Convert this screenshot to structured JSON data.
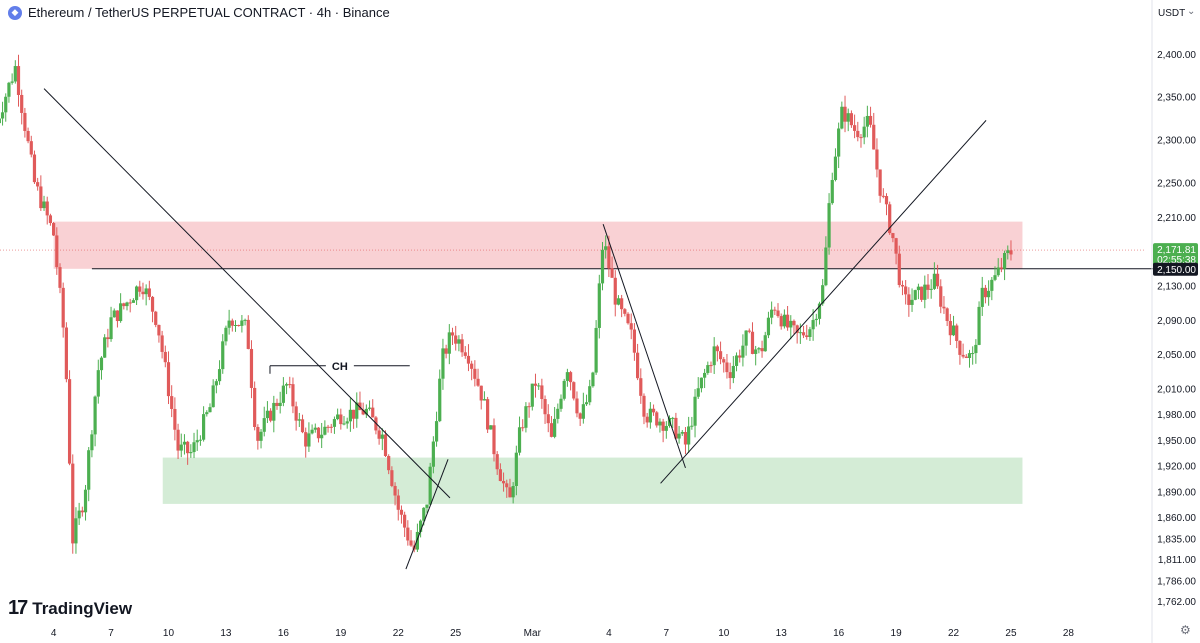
{
  "header": {
    "eth_icon": "ethereum-icon",
    "title": "Ethereum / TetherUS PERPETUAL CONTRACT · 4h · Binance",
    "currency": "USDT",
    "currency_chevron": "⌄"
  },
  "footer": {
    "logo_mark": "17",
    "logo_text": "TradingView",
    "settings_icon": "gear-icon",
    "settings_glyph": "⚙"
  },
  "colors": {
    "up": "#4caf50",
    "down": "#e05a5a",
    "supply_zone": "#f8c9cc",
    "demand_zone": "#cde9cf",
    "price_label": "#4caf50",
    "level_label": "#131722"
  },
  "chart_data": {
    "type": "candlestick",
    "symbol": "ETHUSDT.P",
    "timeframe": "4h",
    "exchange": "Binance",
    "y_axis": {
      "ticks": [
        "2,400.00",
        "2,350.00",
        "2,300.00",
        "2,250.00",
        "2,210.00",
        "2,150.00",
        "2,130.00",
        "2,090.00",
        "2,050.00",
        "2,010.00",
        "1,980.00",
        "1,950.00",
        "1,920.00",
        "1,890.00",
        "1,860.00",
        "1,835.00",
        "1,811.00",
        "1,786.00",
        "1,762.00"
      ],
      "tick_values": [
        2400,
        2350,
        2300,
        2250,
        2210,
        2150,
        2130,
        2090,
        2050,
        2010,
        1980,
        1950,
        1920,
        1890,
        1860,
        1835,
        1811,
        1786,
        1762
      ],
      "range": [
        1750,
        2440
      ]
    },
    "x_axis": {
      "labels": [
        "4",
        "7",
        "10",
        "13",
        "16",
        "19",
        "22",
        "25",
        "Mar",
        "4",
        "7",
        "10",
        "13",
        "16",
        "19",
        "22",
        "25",
        "28"
      ],
      "label_days": [
        4,
        7,
        10,
        13,
        16,
        19,
        22,
        25,
        29,
        33,
        36,
        39,
        42,
        45,
        48,
        51,
        54,
        57
      ],
      "range_days": [
        1.2,
        61
      ]
    },
    "current_price": {
      "label": "2,171.81",
      "value": 2171.81,
      "countdown": "02:55:38"
    },
    "horizontal_level": {
      "label": "2,150.00",
      "value": 2150.0
    },
    "zones": [
      {
        "kind": "supply",
        "from_day": 4,
        "to_day": 54.6,
        "low": 2150,
        "high": 2205
      },
      {
        "kind": "demand",
        "from_day": 9.7,
        "to_day": 54.6,
        "low": 1876,
        "high": 1930
      }
    ],
    "annotations": [
      {
        "text": "CH",
        "from_day": 15.3,
        "to_day": 22.6,
        "price": 2037
      }
    ],
    "trendlines": [
      {
        "from": [
          3.5,
          2360
        ],
        "to": [
          24.7,
          1883
        ]
      },
      {
        "from": [
          22.4,
          1800
        ],
        "to": [
          24.6,
          1928
        ]
      },
      {
        "from": [
          32.7,
          2202
        ],
        "to": [
          37.0,
          1918
        ]
      },
      {
        "from": [
          35.7,
          1900
        ],
        "to": [
          52.7,
          2323
        ]
      }
    ],
    "keypoints": [
      [
        1.0,
        2320
      ],
      [
        2.0,
        2385
      ],
      [
        3.0,
        2250
      ],
      [
        4.0,
        2190
      ],
      [
        4.6,
        2060
      ],
      [
        5.0,
        1835
      ],
      [
        5.6,
        1885
      ],
      [
        6.3,
        2030
      ],
      [
        7.0,
        2090
      ],
      [
        7.8,
        2110
      ],
      [
        8.6,
        2135
      ],
      [
        9.4,
        2090
      ],
      [
        10.0,
        2010
      ],
      [
        10.5,
        1940
      ],
      [
        11.2,
        1935
      ],
      [
        12.2,
        1990
      ],
      [
        13.2,
        2095
      ],
      [
        14.1,
        2080
      ],
      [
        14.6,
        1950
      ],
      [
        15.4,
        1985
      ],
      [
        16.2,
        2015
      ],
      [
        17.1,
        1950
      ],
      [
        18.0,
        1960
      ],
      [
        19.0,
        1980
      ],
      [
        20.3,
        1985
      ],
      [
        21.2,
        1955
      ],
      [
        22.0,
        1870
      ],
      [
        22.8,
        1820
      ],
      [
        23.5,
        1880
      ],
      [
        24.3,
        2045
      ],
      [
        24.8,
        2075
      ],
      [
        25.6,
        2055
      ],
      [
        26.4,
        2000
      ],
      [
        27.1,
        1930
      ],
      [
        27.8,
        1875
      ],
      [
        28.4,
        1965
      ],
      [
        29.2,
        2020
      ],
      [
        30.0,
        1950
      ],
      [
        30.8,
        2040
      ],
      [
        31.5,
        1975
      ],
      [
        32.1,
        2010
      ],
      [
        32.7,
        2185
      ],
      [
        33.4,
        2110
      ],
      [
        34.2,
        2070
      ],
      [
        34.9,
        1980
      ],
      [
        35.6,
        1975
      ],
      [
        36.4,
        1965
      ],
      [
        37.0,
        1945
      ],
      [
        37.7,
        2010
      ],
      [
        38.5,
        2055
      ],
      [
        39.3,
        2030
      ],
      [
        40.2,
        2070
      ],
      [
        40.9,
        2050
      ],
      [
        41.6,
        2110
      ],
      [
        42.2,
        2085
      ],
      [
        42.9,
        2070
      ],
      [
        43.6,
        2085
      ],
      [
        44.2,
        2130
      ],
      [
        44.6,
        2255
      ],
      [
        45.2,
        2335
      ],
      [
        45.9,
        2310
      ],
      [
        46.6,
        2320
      ],
      [
        47.2,
        2240
      ],
      [
        47.8,
        2190
      ],
      [
        48.4,
        2110
      ],
      [
        49.2,
        2120
      ],
      [
        50.0,
        2135
      ],
      [
        50.7,
        2090
      ],
      [
        51.4,
        2055
      ],
      [
        52.0,
        2045
      ],
      [
        52.5,
        2120
      ],
      [
        53.2,
        2140
      ],
      [
        53.8,
        2165
      ],
      [
        54.1,
        2172
      ]
    ]
  }
}
